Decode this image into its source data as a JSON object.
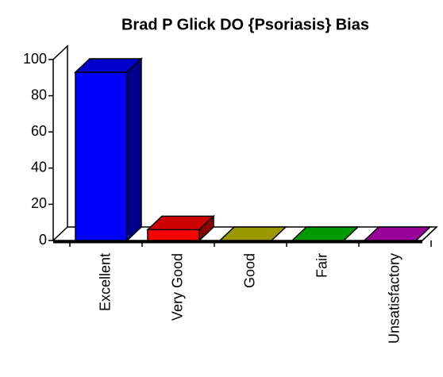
{
  "chart_data": {
    "type": "bar3d",
    "title": "Brad P Glick DO {Psoriasis} Bias",
    "categories": [
      "Excellent",
      "Very Good",
      "Good",
      "Fair",
      "Unsatisfactory"
    ],
    "values": [
      93,
      6,
      0,
      0,
      0
    ],
    "colors": [
      "#0000ff",
      "#ff0000",
      "#c0c000",
      "#00c000",
      "#c000c0"
    ],
    "ylim": [
      0,
      100
    ],
    "yticks": [
      0,
      20,
      40,
      60,
      80,
      100
    ]
  }
}
